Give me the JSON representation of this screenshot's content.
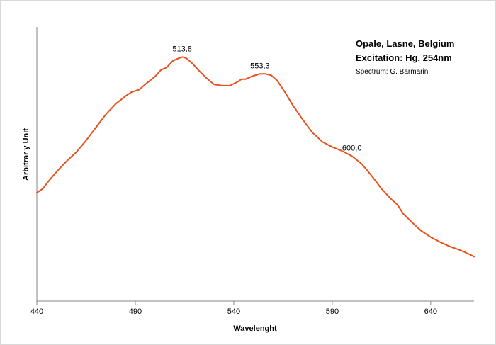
{
  "chart_data": {
    "type": "line",
    "title_lines": [
      "Opale, Lasne, Belgium",
      "Excitation:  Hg, 254nm"
    ],
    "subtitle": "Spectrum: G. Barmarin",
    "xlabel": "Wavelenght",
    "ylabel": "Arbitrar y Unit",
    "xlim": [
      440,
      662
    ],
    "ylim": [
      0,
      1.05
    ],
    "xticks": [
      440,
      490,
      540,
      590,
      640
    ],
    "grid": false,
    "legend": false,
    "line_color": "#e8501c",
    "series": [
      {
        "x": [
          440,
          443,
          446,
          450,
          455,
          460,
          465,
          470,
          475,
          480,
          485,
          488,
          492,
          495,
          500,
          503,
          506,
          509,
          512,
          514,
          516,
          519,
          522,
          526,
          530,
          534,
          538,
          542,
          544,
          546,
          549,
          553,
          556,
          559,
          562,
          566,
          570,
          575,
          580,
          585,
          590,
          595,
          600,
          605,
          610,
          615,
          620,
          623,
          626,
          630,
          635,
          640,
          645,
          650,
          655,
          660,
          662
        ],
        "y": [
          0.415,
          0.43,
          0.46,
          0.495,
          0.535,
          0.57,
          0.615,
          0.665,
          0.715,
          0.755,
          0.785,
          0.8,
          0.81,
          0.83,
          0.86,
          0.885,
          0.895,
          0.92,
          0.93,
          0.935,
          0.93,
          0.91,
          0.885,
          0.855,
          0.83,
          0.825,
          0.825,
          0.84,
          0.85,
          0.85,
          0.86,
          0.87,
          0.87,
          0.865,
          0.845,
          0.8,
          0.75,
          0.695,
          0.645,
          0.61,
          0.59,
          0.575,
          0.555,
          0.525,
          0.48,
          0.43,
          0.39,
          0.37,
          0.335,
          0.305,
          0.27,
          0.245,
          0.225,
          0.208,
          0.195,
          0.178,
          0.17
        ]
      }
    ],
    "annotations": [
      {
        "label": "513,8",
        "x": 513.8,
        "y": 0.935
      },
      {
        "label": "553,3",
        "x": 553.3,
        "y": 0.87
      },
      {
        "label": "600,0",
        "x": 600,
        "y": 0.555
      }
    ]
  }
}
